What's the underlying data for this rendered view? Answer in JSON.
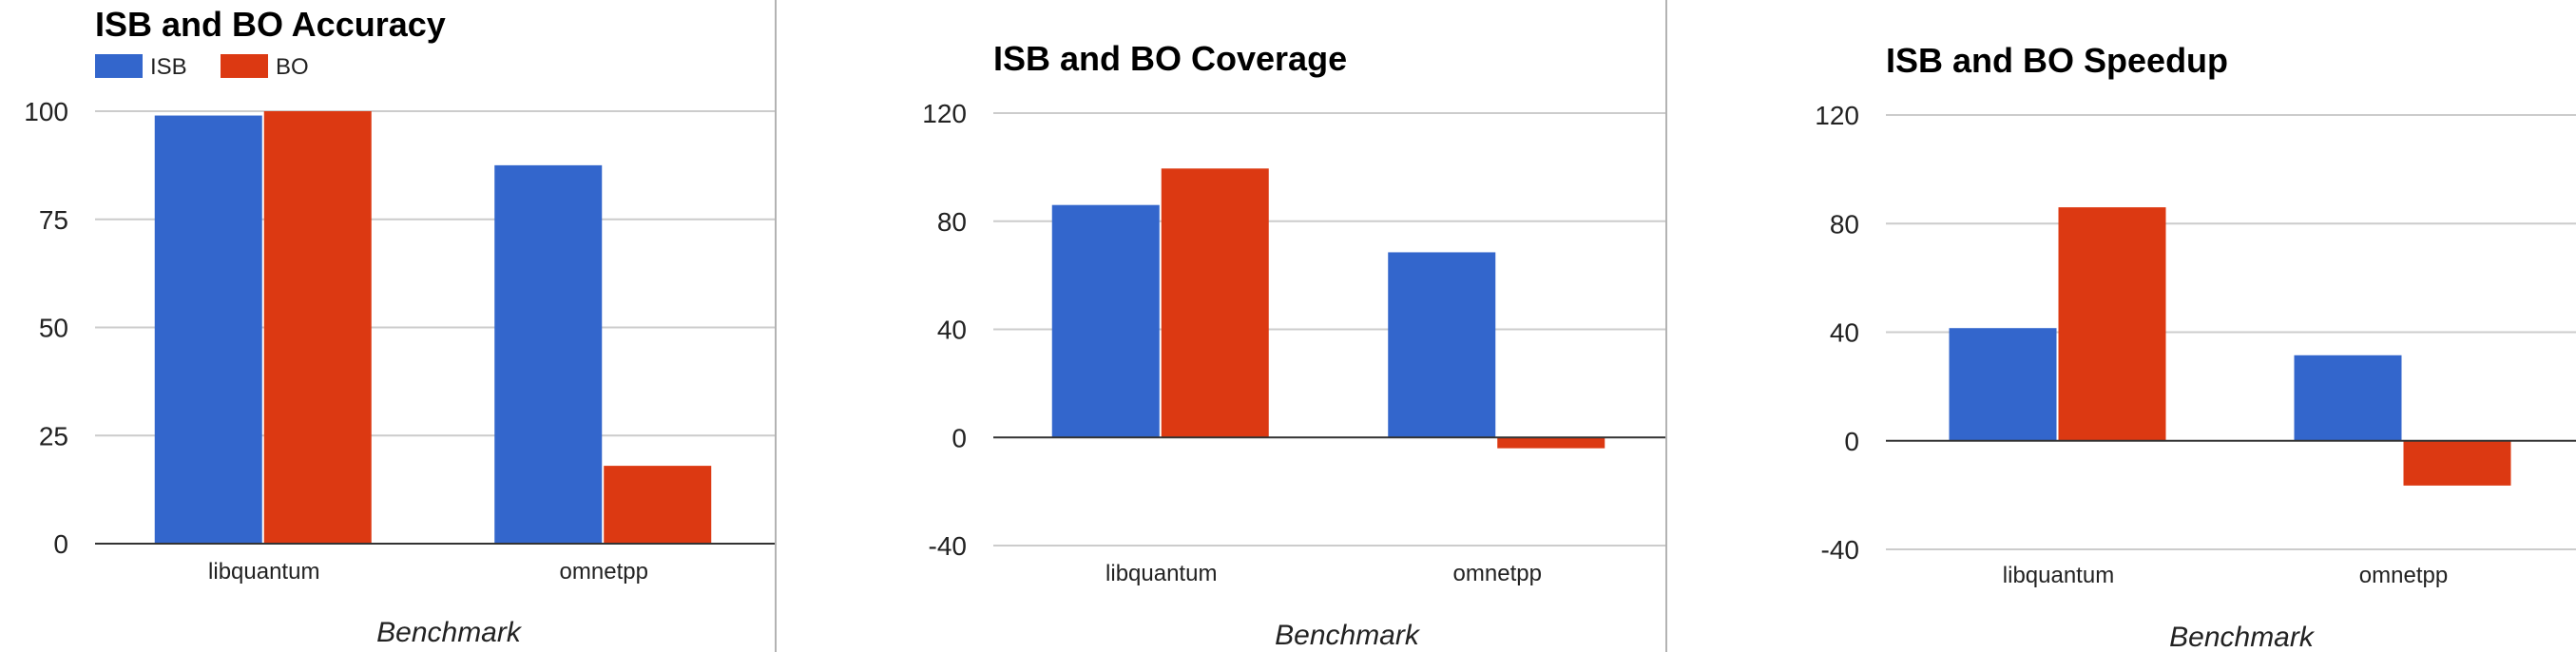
{
  "colors": {
    "ISB": "#3366cc",
    "BO": "#dc3912",
    "grid": "#cccccc",
    "axis": "#333333"
  },
  "chart_data": [
    {
      "type": "bar",
      "title": "ISB and BO Accuracy",
      "xlabel": "Benchmark",
      "ylabel": "",
      "categories": [
        "libquantum",
        "omnetpp"
      ],
      "series": [
        {
          "name": "ISB",
          "values": [
            99,
            87.5
          ]
        },
        {
          "name": "BO",
          "values": [
            100,
            18
          ]
        }
      ],
      "ylim": [
        0,
        100
      ],
      "yticks": [
        0,
        25,
        50,
        75,
        100
      ],
      "legend": "top-left",
      "grid": true
    },
    {
      "type": "bar",
      "title": "ISB and BO Coverage",
      "xlabel": "Benchmark",
      "ylabel": "",
      "categories": [
        "libquantum",
        "omnetpp"
      ],
      "series": [
        {
          "name": "ISB",
          "values": [
            86,
            68.5
          ]
        },
        {
          "name": "BO",
          "values": [
            99.5,
            -4
          ]
        }
      ],
      "ylim": [
        -40,
        120
      ],
      "yticks": [
        -40,
        0,
        40,
        80,
        120
      ],
      "grid": true
    },
    {
      "type": "bar",
      "title": "ISB and BO Speedup",
      "xlabel": "Benchmark",
      "ylabel": "",
      "categories": [
        "libquantum",
        "omnetpp"
      ],
      "series": [
        {
          "name": "ISB",
          "values": [
            41.5,
            31.5
          ]
        },
        {
          "name": "BO",
          "values": [
            86,
            -16.5
          ]
        }
      ],
      "ylim": [
        -40,
        120
      ],
      "yticks": [
        -40,
        0,
        40,
        80,
        120
      ],
      "grid": true
    }
  ]
}
